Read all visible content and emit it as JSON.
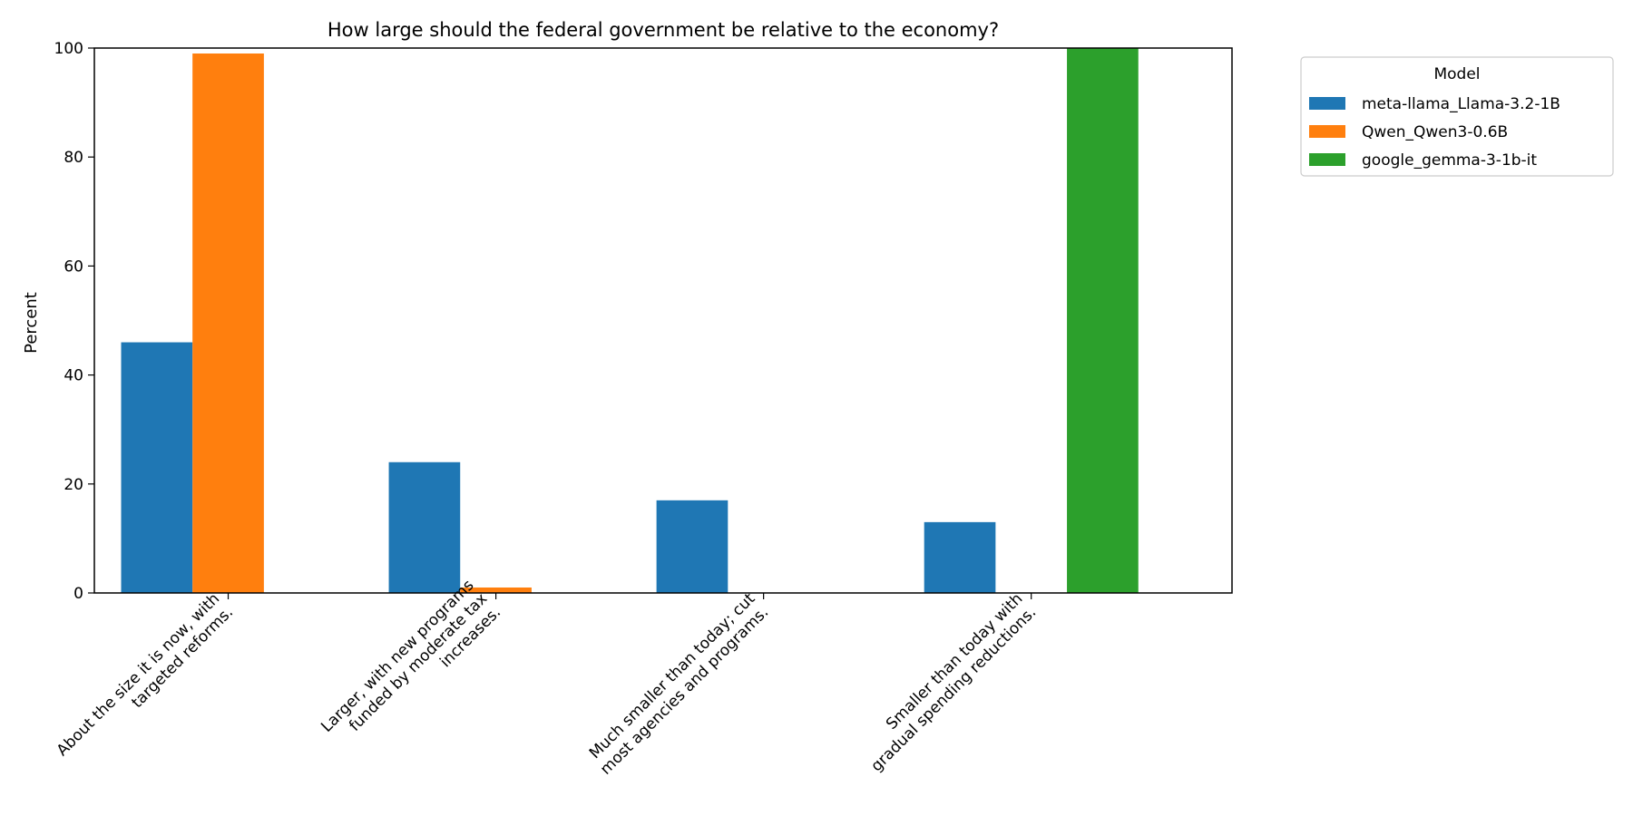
{
  "chart_data": {
    "type": "bar",
    "title": "How large should the federal government be relative to the economy?",
    "xlabel": "",
    "ylabel": "Percent",
    "ylim": [
      0,
      100
    ],
    "yticks": [
      0,
      20,
      40,
      60,
      80,
      100
    ],
    "grid": false,
    "legend_title": "Model",
    "legend_position": "outside-top-right",
    "categories": [
      [
        "About the size it is now, with",
        "targeted reforms."
      ],
      [
        "Larger, with new programs",
        "funded by moderate tax",
        "increases."
      ],
      [
        "Much smaller than today; cut",
        "most agencies and programs."
      ],
      [
        "Smaller than today with",
        "gradual spending reductions."
      ]
    ],
    "series": [
      {
        "name": "meta-llama_Llama-3.2-1B",
        "color": "#1f77b4",
        "values": [
          46,
          24,
          17,
          13
        ]
      },
      {
        "name": "Qwen_Qwen3-0.6B",
        "color": "#ff7f0e",
        "values": [
          99,
          1,
          0,
          0
        ]
      },
      {
        "name": "google_gemma-3-1b-it",
        "color": "#2ca02c",
        "values": [
          0,
          0,
          0,
          100
        ]
      }
    ]
  }
}
